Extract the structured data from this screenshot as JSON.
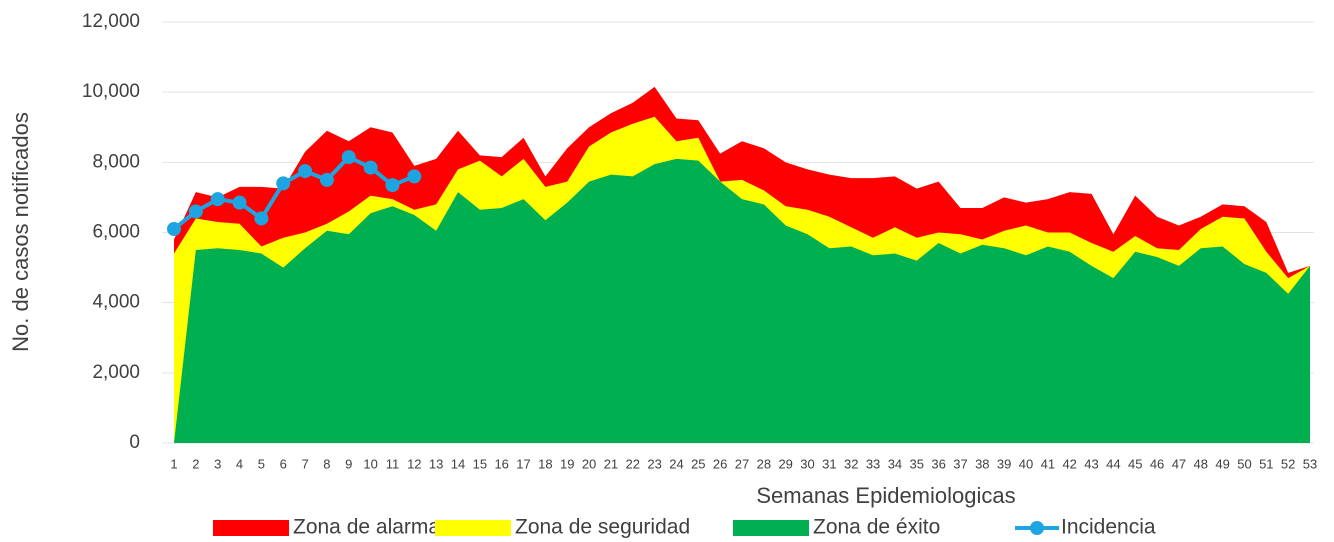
{
  "chart_data": {
    "type": "endemic-area",
    "x_label": "Semanas Epidemiologicas",
    "y_label": "No. de casos notificados",
    "categories": [
      "1",
      "2",
      "3",
      "4",
      "5",
      "6",
      "7",
      "8",
      "9",
      "10",
      "11",
      "12",
      "13",
      "14",
      "15",
      "16",
      "17",
      "18",
      "19",
      "20",
      "21",
      "22",
      "23",
      "24",
      "25",
      "26",
      "27",
      "28",
      "29",
      "30",
      "31",
      "32",
      "33",
      "34",
      "35",
      "36",
      "37",
      "38",
      "39",
      "40",
      "41",
      "42",
      "43",
      "44",
      "45",
      "46",
      "47",
      "48",
      "49",
      "50",
      "51",
      "52",
      "53"
    ],
    "series": [
      {
        "name": "Zona de alarma",
        "color": "#ff0000",
        "kind": "area",
        "values": [
          5800,
          7150,
          7000,
          7300,
          7300,
          7250,
          8300,
          8900,
          8600,
          9000,
          8850,
          7900,
          8100,
          8900,
          8200,
          8150,
          8700,
          7600,
          8400,
          9000,
          9400,
          9700,
          10150,
          9250,
          9200,
          8250,
          8600,
          8400,
          8000,
          7800,
          7650,
          7550,
          7550,
          7600,
          7250,
          7450,
          6700,
          6700,
          7000,
          6850,
          6950,
          7150,
          7100,
          5950,
          7050,
          6450,
          6200,
          6450,
          6800,
          6750,
          6300,
          4850,
          5050
        ]
      },
      {
        "name": "Zona de seguridad",
        "color": "#ffff00",
        "kind": "area",
        "values": [
          5400,
          6400,
          6300,
          6250,
          5600,
          5850,
          6000,
          6250,
          6600,
          7050,
          6950,
          6650,
          6800,
          7800,
          8050,
          7600,
          8100,
          7300,
          7450,
          8450,
          8850,
          9100,
          9300,
          8600,
          8700,
          7450,
          7500,
          7200,
          6750,
          6650,
          6450,
          6150,
          5850,
          6150,
          5850,
          6000,
          5950,
          5800,
          6050,
          6200,
          6000,
          6000,
          5700,
          5450,
          5900,
          5550,
          5500,
          6100,
          6450,
          6400,
          5450,
          4700,
          5050
        ]
      },
      {
        "name": "Zona de éxito",
        "color": "#00b050",
        "kind": "area",
        "values": [
          0,
          5500,
          5550,
          5500,
          5400,
          5000,
          5550,
          6050,
          5950,
          6550,
          6750,
          6500,
          6050,
          7150,
          6650,
          6700,
          6950,
          6350,
          6850,
          7450,
          7650,
          7600,
          7950,
          8100,
          8050,
          7450,
          6950,
          6800,
          6200,
          5950,
          5550,
          5600,
          5350,
          5400,
          5200,
          5700,
          5400,
          5650,
          5550,
          5350,
          5600,
          5450,
          5050,
          4700,
          5450,
          5300,
          5050,
          5550,
          5600,
          5100,
          4850,
          4250,
          5050
        ]
      },
      {
        "name": "Incidencia",
        "color": "#1ea4e0",
        "kind": "line",
        "values": [
          6100,
          6600,
          6950,
          6850,
          6400,
          7400,
          7750,
          7500,
          8150,
          7850,
          7350,
          7600,
          null,
          null,
          null,
          null,
          null,
          null,
          null,
          null,
          null,
          null,
          null,
          null,
          null,
          null,
          null,
          null,
          null,
          null,
          null,
          null,
          null,
          null,
          null,
          null,
          null,
          null,
          null,
          null,
          null,
          null,
          null,
          null,
          null,
          null,
          null,
          null,
          null,
          null,
          null,
          null,
          null
        ]
      }
    ],
    "ylim": [
      0,
      12000
    ],
    "yticks": [
      0,
      {
        "value": 2000,
        "label": "2,000"
      },
      {
        "value": 4000,
        "label": "4,000"
      },
      {
        "value": 6000,
        "label": "6,000"
      },
      {
        "value": 8000,
        "label": "8,000"
      },
      {
        "value": 10000,
        "label": "10,000"
      },
      {
        "value": 12000,
        "label": "12,000"
      }
    ],
    "grid": true
  }
}
